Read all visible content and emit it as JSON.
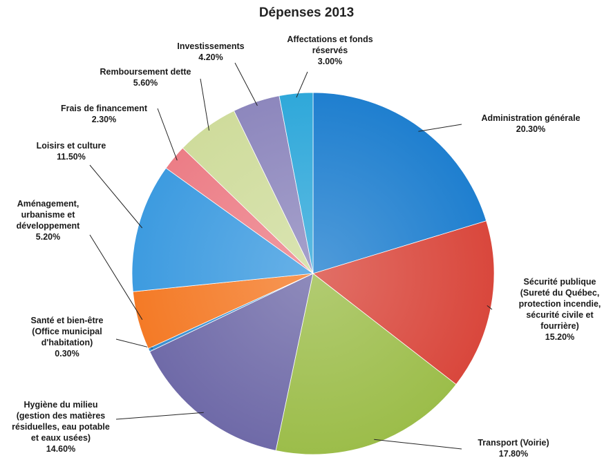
{
  "chart_data": {
    "type": "pie",
    "title": "Dépenses 2013",
    "slices": [
      {
        "label": "Administration générale",
        "value": 20.3,
        "display": "20.30%",
        "color": "#1f7fcf"
      },
      {
        "label": "Sécurité publique\n(Sureté du Québec,\nprotection incendie,\nsécurité civile et\nfourrière)",
        "value": 15.2,
        "display": "15.20%",
        "color": "#d9473c"
      },
      {
        "label": "Transport (Voirie)",
        "value": 17.8,
        "display": "17.80%",
        "color": "#9cbd4a"
      },
      {
        "label": "Hygiène du milieu\n(gestion des matières\nrésiduelles, eau potable\net eaux usées)",
        "value": 14.6,
        "display": "14.60%",
        "color": "#6f6aa8"
      },
      {
        "label": "Santé et bien-être\n(Office municipal\nd'habitation)",
        "value": 0.3,
        "display": "0.30%",
        "color": "#3a8fd0"
      },
      {
        "label": "Aménagement,\nurbanisme et\ndéveloppement",
        "value": 5.2,
        "display": "5.20%",
        "color": "#f47a26"
      },
      {
        "label": "Loisirs et culture",
        "value": 11.5,
        "display": "11.50%",
        "color": "#3d9be0"
      },
      {
        "label": "Frais de financement",
        "value": 2.3,
        "display": "2.30%",
        "color": "#ec7d86"
      },
      {
        "label": "Remboursement dette",
        "value": 5.6,
        "display": "5.60%",
        "color": "#cfdc9c"
      },
      {
        "label": "Investissements",
        "value": 4.2,
        "display": "4.20%",
        "color": "#8d87bd"
      },
      {
        "label": "Affectations et fonds\nréservés",
        "value": 3.0,
        "display": "3.00%",
        "color": "#2fa8da"
      }
    ],
    "legend": "none"
  }
}
